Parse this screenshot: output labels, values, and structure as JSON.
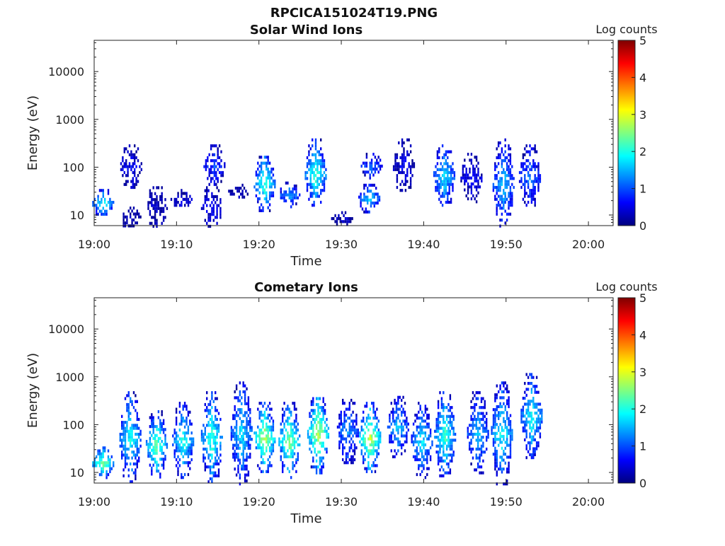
{
  "figure_title": "RPCICA151024T19.PNG",
  "chart_data": [
    {
      "type": "heatmap",
      "title": "Solar Wind Ions",
      "xlabel": "Time",
      "ylabel": "Energy (eV)",
      "yscale": "log",
      "ylim": [
        6,
        45000
      ],
      "xlim": [
        "19:00",
        "20:03"
      ],
      "x_ticks": [
        "19:00",
        "19:10",
        "19:20",
        "19:30",
        "19:40",
        "19:50",
        "20:00"
      ],
      "y_ticks": [
        "10",
        "100",
        "1000",
        "10000"
      ],
      "colorbar": {
        "label": "Log counts",
        "range": [
          0,
          5
        ],
        "ticks": [
          "0",
          "1",
          "2",
          "3",
          "4",
          "5"
        ],
        "colormap": "jet"
      },
      "bursts": [
        {
          "t": 1.0,
          "emin": 10,
          "emax": 35,
          "peak": 2.0
        },
        {
          "t": 4.3,
          "emin": 6,
          "emax": 15,
          "peak": 0.2
        },
        {
          "t": 4.4,
          "emin": 40,
          "emax": 300,
          "peak": 0.6
        },
        {
          "t": 7.5,
          "emin": 6,
          "emax": 40,
          "peak": 0.3
        },
        {
          "t": 10.5,
          "emin": 15,
          "emax": 35,
          "peak": 0.5
        },
        {
          "t": 14.2,
          "emin": 6,
          "emax": 40,
          "peak": 0.7
        },
        {
          "t": 14.5,
          "emin": 45,
          "emax": 300,
          "peak": 1.0
        },
        {
          "t": 17.5,
          "emin": 25,
          "emax": 45,
          "peak": 0.3
        },
        {
          "t": 20.6,
          "emin": 12,
          "emax": 200,
          "peak": 2.2
        },
        {
          "t": 23.6,
          "emin": 15,
          "emax": 50,
          "peak": 1.5
        },
        {
          "t": 26.8,
          "emin": 15,
          "emax": 400,
          "peak": 2.2
        },
        {
          "t": 30.0,
          "emin": 6,
          "emax": 12,
          "peak": 0.3
        },
        {
          "t": 33.3,
          "emin": 12,
          "emax": 45,
          "peak": 1.8
        },
        {
          "t": 33.6,
          "emin": 60,
          "emax": 200,
          "peak": 1.2
        },
        {
          "t": 37.5,
          "emin": 30,
          "emax": 400,
          "peak": 0.5
        },
        {
          "t": 42.4,
          "emin": 15,
          "emax": 300,
          "peak": 1.8
        },
        {
          "t": 45.7,
          "emin": 20,
          "emax": 200,
          "peak": 0.6
        },
        {
          "t": 49.6,
          "emin": 6,
          "emax": 400,
          "peak": 1.6
        },
        {
          "t": 52.8,
          "emin": 15,
          "emax": 300,
          "peak": 1.2
        }
      ]
    },
    {
      "type": "heatmap",
      "title": "Cometary Ions",
      "xlabel": "Time",
      "ylabel": "Energy (eV)",
      "yscale": "log",
      "ylim": [
        6,
        45000
      ],
      "xlim": [
        "19:00",
        "20:03"
      ],
      "x_ticks": [
        "19:00",
        "19:10",
        "19:20",
        "19:30",
        "19:40",
        "19:50",
        "20:00"
      ],
      "y_ticks": [
        "10",
        "100",
        "1000",
        "10000"
      ],
      "colorbar": {
        "label": "Log counts",
        "range": [
          0,
          5
        ],
        "ticks": [
          "0",
          "1",
          "2",
          "3",
          "4",
          "5"
        ],
        "colormap": "jet"
      },
      "bursts": [
        {
          "t": 1.0,
          "emin": 8,
          "emax": 35,
          "peak": 2.6
        },
        {
          "t": 4.3,
          "emin": 6,
          "emax": 500,
          "peak": 2.0
        },
        {
          "t": 7.5,
          "emin": 8,
          "emax": 200,
          "peak": 2.4
        },
        {
          "t": 10.7,
          "emin": 8,
          "emax": 300,
          "peak": 2.0
        },
        {
          "t": 14.2,
          "emin": 6,
          "emax": 500,
          "peak": 2.2
        },
        {
          "t": 17.8,
          "emin": 6,
          "emax": 800,
          "peak": 1.8
        },
        {
          "t": 20.6,
          "emin": 10,
          "emax": 300,
          "peak": 2.8
        },
        {
          "t": 23.6,
          "emin": 8,
          "emax": 300,
          "peak": 2.6
        },
        {
          "t": 27.1,
          "emin": 10,
          "emax": 500,
          "peak": 2.8
        },
        {
          "t": 30.7,
          "emin": 15,
          "emax": 400,
          "peak": 1.4
        },
        {
          "t": 33.4,
          "emin": 10,
          "emax": 300,
          "peak": 2.9
        },
        {
          "t": 36.8,
          "emin": 20,
          "emax": 400,
          "peak": 1.6
        },
        {
          "t": 39.7,
          "emin": 8,
          "emax": 300,
          "peak": 1.8
        },
        {
          "t": 42.5,
          "emin": 8,
          "emax": 500,
          "peak": 2.2
        },
        {
          "t": 46.5,
          "emin": 10,
          "emax": 500,
          "peak": 1.6
        },
        {
          "t": 49.4,
          "emin": 6,
          "emax": 800,
          "peak": 2.0
        },
        {
          "t": 53.0,
          "emin": 20,
          "emax": 1200,
          "peak": 2.0
        }
      ]
    }
  ]
}
